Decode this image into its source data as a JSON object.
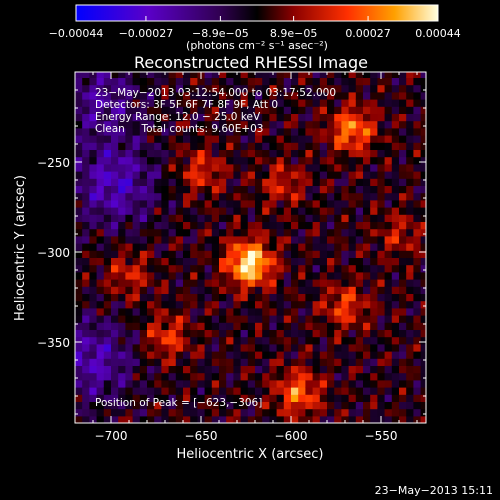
{
  "chart_data": {
    "type": "heatmap",
    "title": "Reconstructed RHESSI Image",
    "xlabel": "Heliocentric X (arcsec)",
    "ylabel": "Heliocentric Y (arcsec)",
    "xlim": [
      -720,
      -525
    ],
    "ylim": [
      -395,
      -200
    ],
    "x_ticks": [
      -700,
      -650,
      -600,
      -550
    ],
    "y_ticks": [
      -250,
      -300,
      -350
    ],
    "x_tick_labels": [
      "−700",
      "−650",
      "−600",
      "−550"
    ],
    "y_tick_labels": [
      "−250",
      "−300",
      "−350"
    ],
    "colorbar": {
      "range": [
        -0.00044,
        0.00044
      ],
      "ticks": [
        -0.00044,
        -0.00027,
        -8.9e-05,
        8.9e-05,
        0.00027,
        0.00044
      ],
      "tick_labels": [
        "−0.00044",
        "−0.00027",
        "−8.9e−05",
        "8.9e−05",
        "0.00027",
        "0.00044"
      ],
      "unit_label": "(photons cm⁻² s⁻¹ asec⁻²)"
    },
    "annotations": {
      "time_range": "23−May−2013 03:12:54.000 to 03:17:52.000",
      "detectors": "Detectors: 3F 5F 6F 7F 8F 9F, Att 0",
      "energy_range": "Energy Range: 12.0 − 25.0 keV",
      "method_counts": "Clean     Total counts: 9.60E+03",
      "peak": "Position of Peak = [−623,−306]"
    },
    "peak": {
      "x": -623,
      "y": -306,
      "value": 0.00044
    },
    "sources": [
      {
        "x": -623,
        "y": -306,
        "amp": 1.0
      },
      {
        "x": -566,
        "y": -232,
        "amp": 0.65
      },
      {
        "x": -596,
        "y": -378,
        "amp": 0.6
      },
      {
        "x": -669,
        "y": -347,
        "amp": 0.45
      },
      {
        "x": -690,
        "y": -312,
        "amp": 0.35
      },
      {
        "x": -650,
        "y": -255,
        "amp": 0.4
      },
      {
        "x": -570,
        "y": -330,
        "amp": 0.45
      },
      {
        "x": -540,
        "y": -290,
        "amp": 0.3
      },
      {
        "x": -605,
        "y": -262,
        "amp": 0.35
      }
    ],
    "negative_regions": [
      {
        "x": -698,
        "y": -262,
        "amp": 0.55
      },
      {
        "x": -710,
        "y": -360,
        "amp": 0.5
      },
      {
        "x": -706,
        "y": -215,
        "amp": 0.4
      }
    ]
  },
  "footer": {
    "timestamp": "23−May−2013 15:11"
  }
}
